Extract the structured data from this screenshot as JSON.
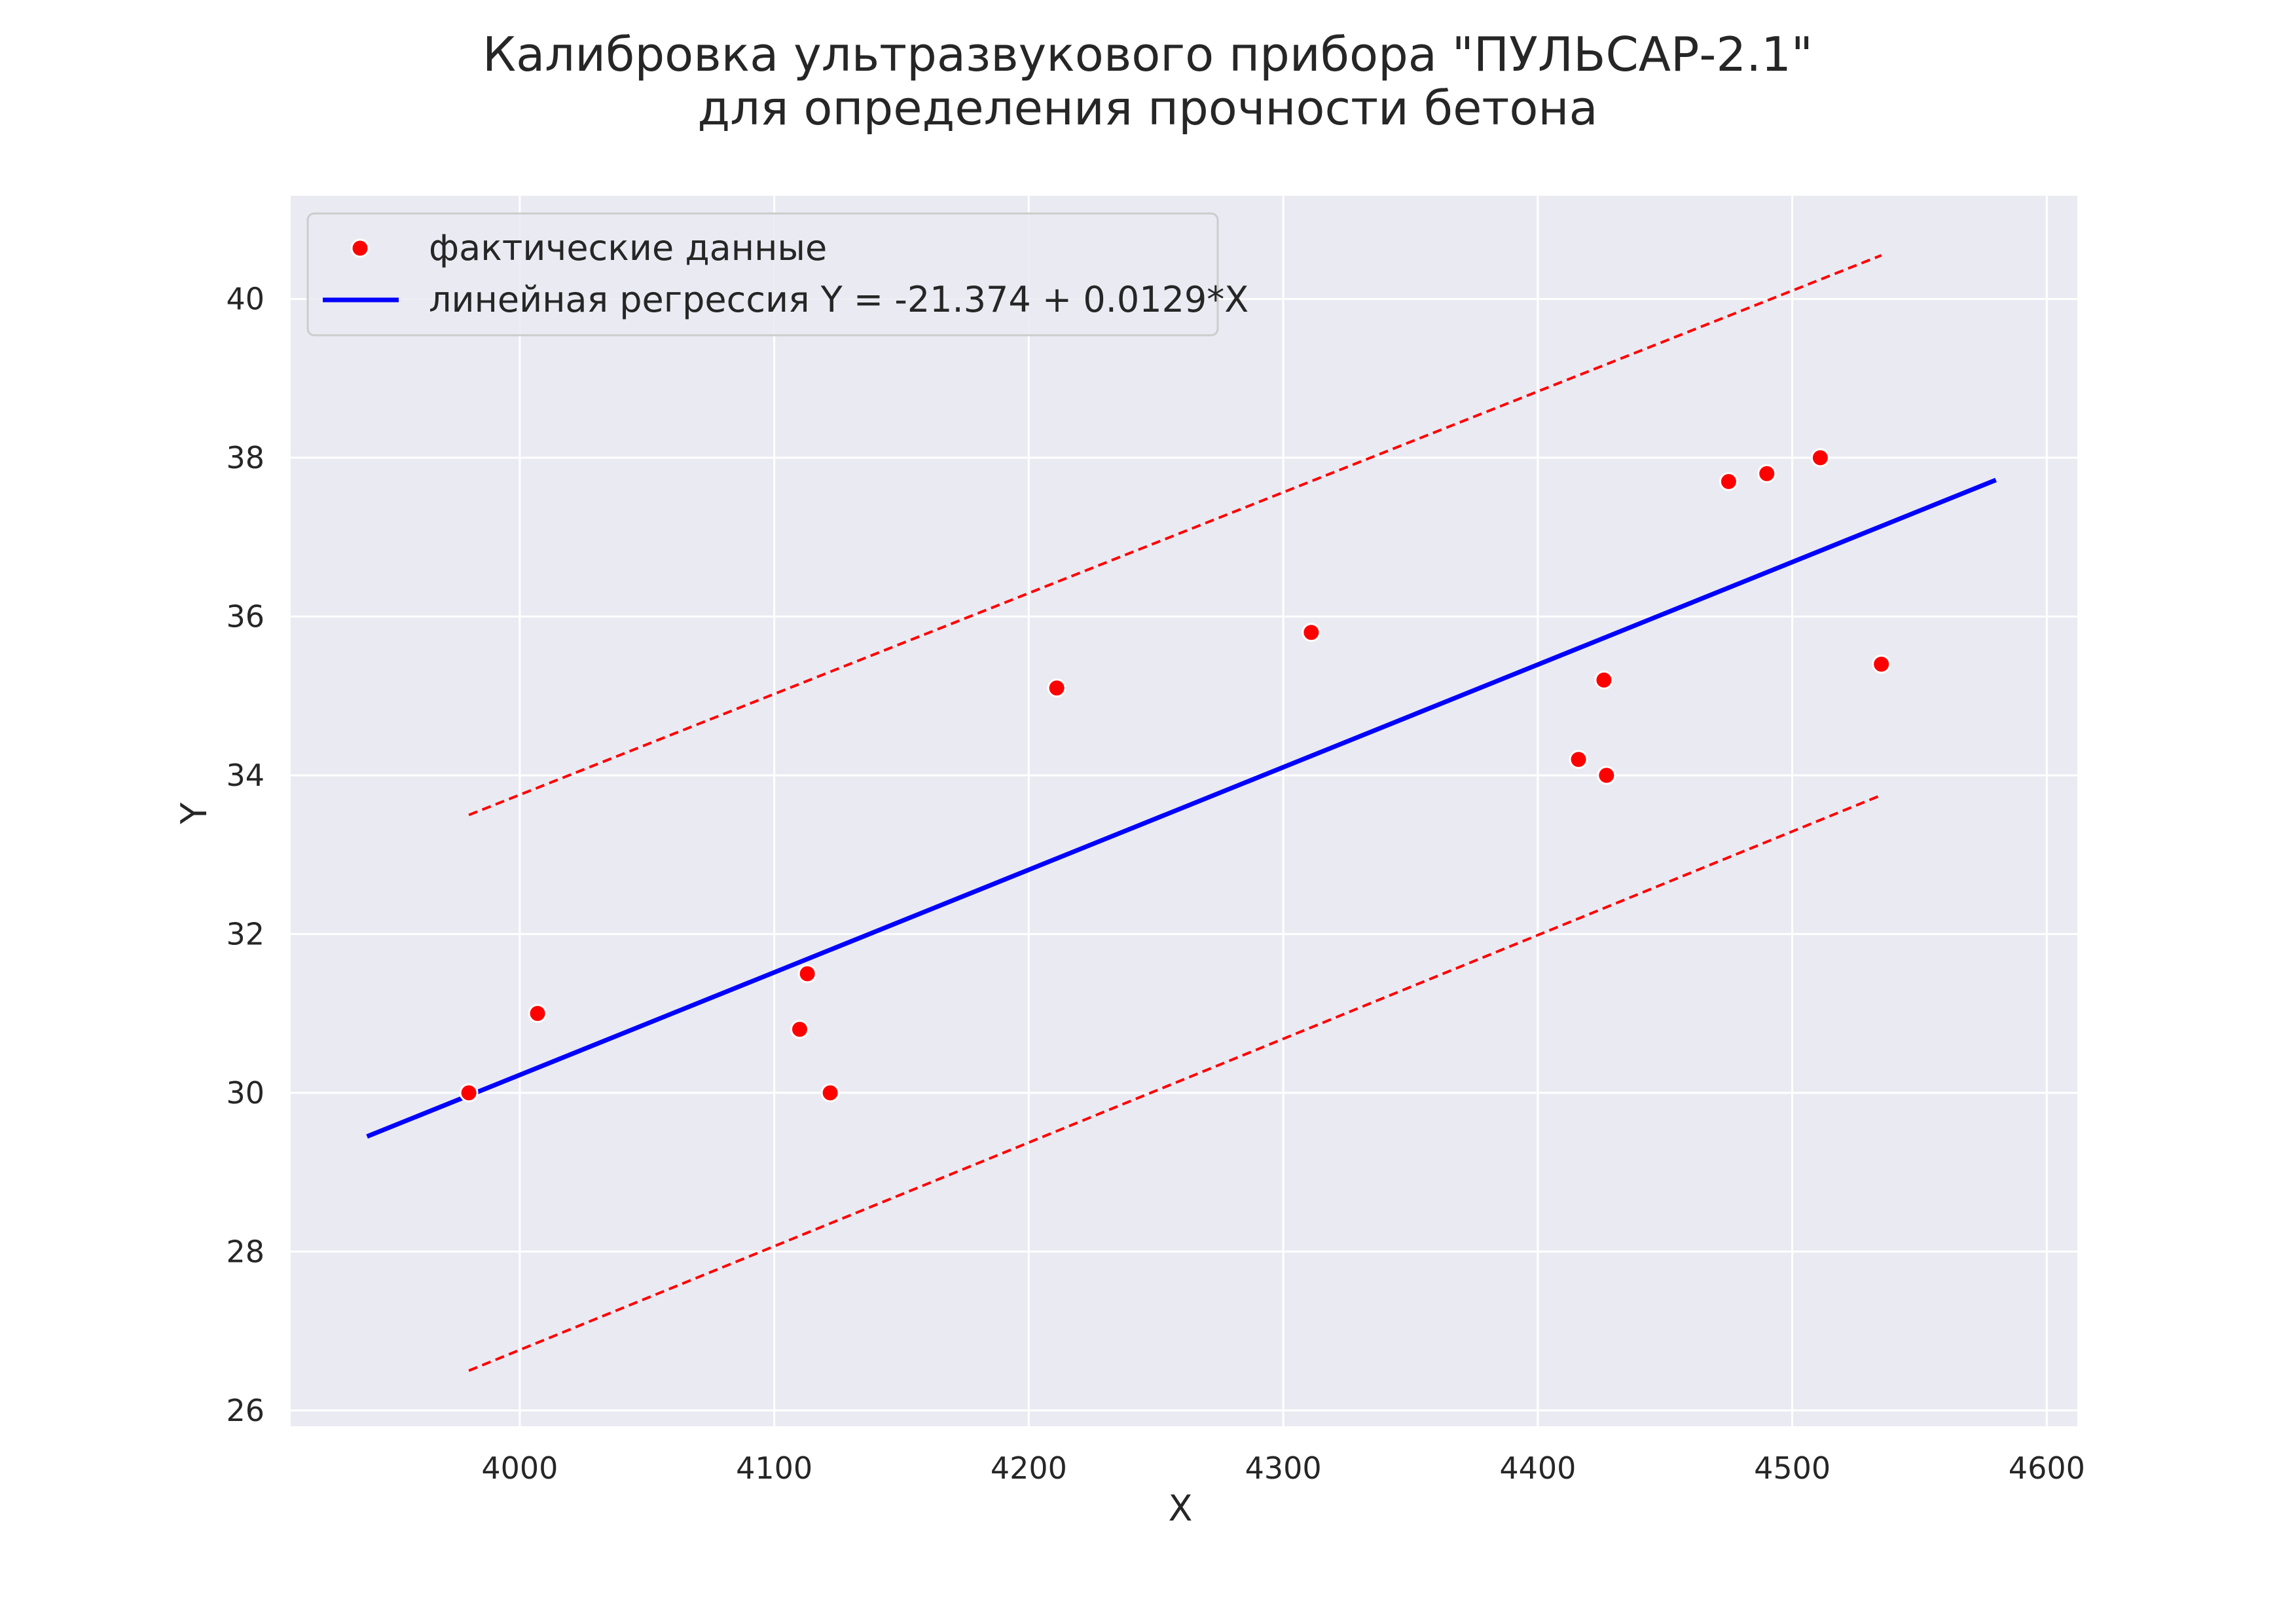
{
  "chart_data": {
    "type": "scatter",
    "title": [
      "Калибровка ультразвукового прибора \"ПУЛЬСАР-2.1\"",
      "для определения прочности бетона"
    ],
    "xlabel": "X",
    "ylabel": "Y",
    "xlim": [
      3910,
      4612
    ],
    "ylim": [
      25.8,
      41.3
    ],
    "xticks": [
      4000,
      4100,
      4200,
      4300,
      4400,
      4500,
      4600
    ],
    "yticks": [
      26,
      28,
      30,
      32,
      34,
      36,
      38,
      40
    ],
    "grid": true,
    "legend_position": "top-left",
    "colors": {
      "plot_background": "#eaeaf2",
      "grid": "#ffffff",
      "points": "#ff0000",
      "regression": "#0000ff",
      "bounds": "#ff0000"
    },
    "series": [
      {
        "name": "фактические данные",
        "kind": "scatter",
        "points": [
          [
            3980,
            30.0
          ],
          [
            4007,
            31.0
          ],
          [
            4110,
            30.8
          ],
          [
            4113,
            31.5
          ],
          [
            4122,
            30.0
          ],
          [
            4211,
            35.1
          ],
          [
            4311,
            35.8
          ],
          [
            4416,
            34.2
          ],
          [
            4426,
            35.2
          ],
          [
            4427,
            34.0
          ],
          [
            4475,
            37.7
          ],
          [
            4490,
            37.8
          ],
          [
            4511,
            38.0
          ],
          [
            4535,
            35.4
          ]
        ]
      },
      {
        "name": "линейная регрессия Y = -21.374 + 0.0129*X",
        "kind": "line",
        "points": [
          [
            3940,
            29.45
          ],
          [
            4580,
            37.72
          ]
        ]
      },
      {
        "kind": "dashed",
        "points": [
          [
            3980,
            33.5
          ],
          [
            4535,
            40.55
          ]
        ]
      },
      {
        "kind": "dashed",
        "points": [
          [
            3980,
            26.5
          ],
          [
            4535,
            33.75
          ]
        ]
      }
    ]
  }
}
